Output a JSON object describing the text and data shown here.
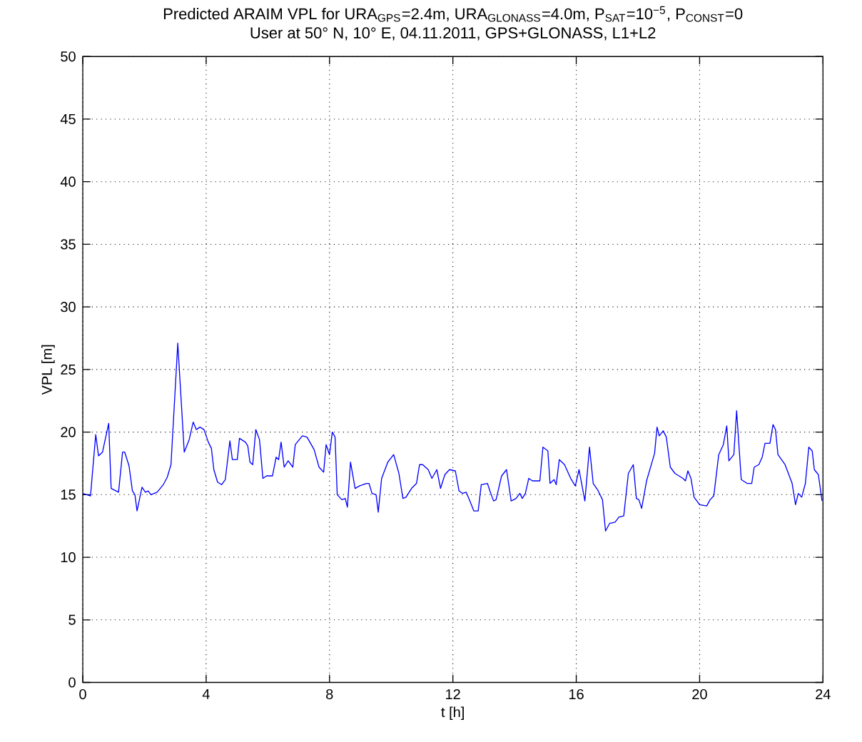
{
  "chart_data": {
    "type": "line",
    "title": "Predicted ARAIM VPL for URA$_{GPS}$=2.4m, URA$_{GLONASS}$=4.0m, P$_{SAT}$=10$^{−5}$, P$_{CONST}$=0",
    "subtitle": "User at 50° N, 10° E, 04.11.2011, GPS+GLONASS, L1+L2",
    "xlabel": "t [h]",
    "ylabel": "VPL [m]",
    "xlim": [
      0,
      24
    ],
    "ylim": [
      0,
      50
    ],
    "xticks": [
      0,
      4,
      8,
      12,
      16,
      20,
      24
    ],
    "yticks": [
      0,
      5,
      10,
      15,
      20,
      25,
      30,
      35,
      40,
      45,
      50
    ],
    "grid": true,
    "marker": "none",
    "line_style": "solid",
    "series": [
      {
        "color": "#0000ff",
        "x": [
          0,
          0.25,
          0.42,
          0.51,
          0.64,
          0.84,
          0.92,
          1.16,
          1.29,
          1.36,
          1.5,
          1.61,
          1.69,
          1.76,
          1.92,
          2.03,
          2.12,
          2.21,
          2.41,
          2.61,
          2.74,
          2.86,
          3.08,
          3.29,
          3.45,
          3.58,
          3.68,
          3.8,
          3.93,
          4.07,
          4.17,
          4.25,
          4.37,
          4.5,
          4.62,
          4.77,
          4.85,
          5.01,
          5.08,
          5.27,
          5.35,
          5.42,
          5.51,
          5.61,
          5.73,
          5.84,
          5.96,
          6.15,
          6.27,
          6.35,
          6.43,
          6.53,
          6.66,
          6.81,
          6.89,
          7.12,
          7.27,
          7.5,
          7.66,
          7.81,
          7.89,
          8.0,
          8.09,
          8.18,
          8.25,
          8.4,
          8.51,
          8.58,
          8.68,
          8.83,
          8.97,
          9.2,
          9.28,
          9.38,
          9.51,
          9.58,
          9.69,
          9.89,
          10.08,
          10.25,
          10.38,
          10.48,
          10.66,
          10.82,
          10.92,
          11.02,
          11.2,
          11.32,
          11.48,
          11.6,
          11.74,
          11.89,
          12.08,
          12.2,
          12.31,
          12.43,
          12.55,
          12.68,
          12.82,
          12.92,
          13.12,
          13.2,
          13.32,
          13.4,
          13.58,
          13.74,
          13.89,
          14.05,
          14.17,
          14.25,
          14.35,
          14.46,
          14.58,
          14.82,
          14.92,
          15.08,
          15.15,
          15.28,
          15.35,
          15.45,
          15.62,
          15.82,
          15.97,
          16.09,
          16.28,
          16.43,
          16.55,
          16.69,
          16.85,
          16.95,
          17.08,
          17.26,
          17.38,
          17.54,
          17.69,
          17.85,
          17.95,
          18.03,
          18.12,
          18.28,
          18.54,
          18.62,
          18.69,
          18.82,
          18.92,
          19.05,
          19.2,
          19.46,
          19.54,
          19.62,
          19.72,
          19.82,
          20.0,
          20.23,
          20.34,
          20.46,
          20.62,
          20.77,
          20.88,
          20.95,
          21.11,
          21.2,
          21.35,
          21.54,
          21.69,
          21.77,
          21.92,
          22.03,
          22.12,
          22.28,
          22.38,
          22.46,
          22.54,
          22.77,
          23.0,
          23.11,
          23.2,
          23.31,
          23.43,
          23.54,
          23.65,
          23.72,
          23.85,
          23.97
        ],
        "values": [
          15.1,
          14.9,
          19.8,
          18.1,
          18.4,
          20.7,
          15.5,
          15.2,
          18.4,
          18.4,
          17.3,
          15.3,
          15.0,
          13.7,
          15.6,
          15.2,
          15.3,
          15.0,
          15.2,
          15.8,
          16.4,
          17.4,
          27.1,
          18.4,
          19.4,
          20.8,
          20.2,
          20.4,
          20.2,
          19.2,
          18.7,
          17.0,
          16.0,
          15.8,
          16.2,
          19.3,
          17.8,
          17.8,
          19.5,
          19.2,
          18.9,
          17.6,
          17.4,
          20.2,
          19.4,
          16.3,
          16.5,
          16.5,
          18.0,
          17.8,
          19.2,
          17.2,
          17.7,
          17.2,
          19.0,
          19.7,
          19.6,
          18.6,
          17.2,
          16.8,
          19.0,
          18.2,
          20.0,
          19.6,
          15.0,
          14.6,
          14.7,
          14.0,
          17.6,
          15.5,
          15.7,
          15.9,
          15.9,
          15.1,
          15.0,
          13.6,
          16.3,
          17.6,
          18.2,
          16.7,
          14.7,
          14.8,
          15.5,
          15.9,
          17.4,
          17.4,
          17.0,
          16.3,
          17.0,
          15.5,
          16.6,
          17.0,
          16.9,
          15.3,
          15.1,
          15.2,
          14.5,
          13.7,
          13.7,
          15.8,
          15.9,
          15.3,
          14.5,
          14.6,
          16.5,
          17.0,
          14.5,
          14.7,
          15.1,
          14.7,
          15.1,
          16.3,
          16.1,
          16.1,
          18.8,
          18.5,
          15.9,
          16.2,
          15.8,
          17.8,
          17.4,
          16.3,
          15.7,
          17.0,
          14.5,
          18.8,
          15.9,
          15.4,
          14.6,
          12.1,
          12.7,
          12.8,
          13.2,
          13.3,
          16.7,
          17.4,
          14.7,
          14.6,
          13.9,
          16.1,
          18.3,
          20.4,
          19.7,
          20.1,
          19.6,
          17.2,
          16.7,
          16.3,
          16.1,
          16.9,
          16.3,
          14.8,
          14.2,
          14.1,
          14.6,
          14.9,
          18.2,
          19.0,
          20.5,
          17.7,
          18.2,
          21.7,
          16.2,
          15.9,
          15.9,
          17.2,
          17.4,
          18.0,
          19.1,
          19.1,
          20.6,
          20.2,
          18.2,
          17.4,
          15.9,
          14.2,
          15.1,
          14.8,
          15.9,
          18.8,
          18.5,
          17.0,
          16.6,
          14.5
        ]
      }
    ]
  }
}
